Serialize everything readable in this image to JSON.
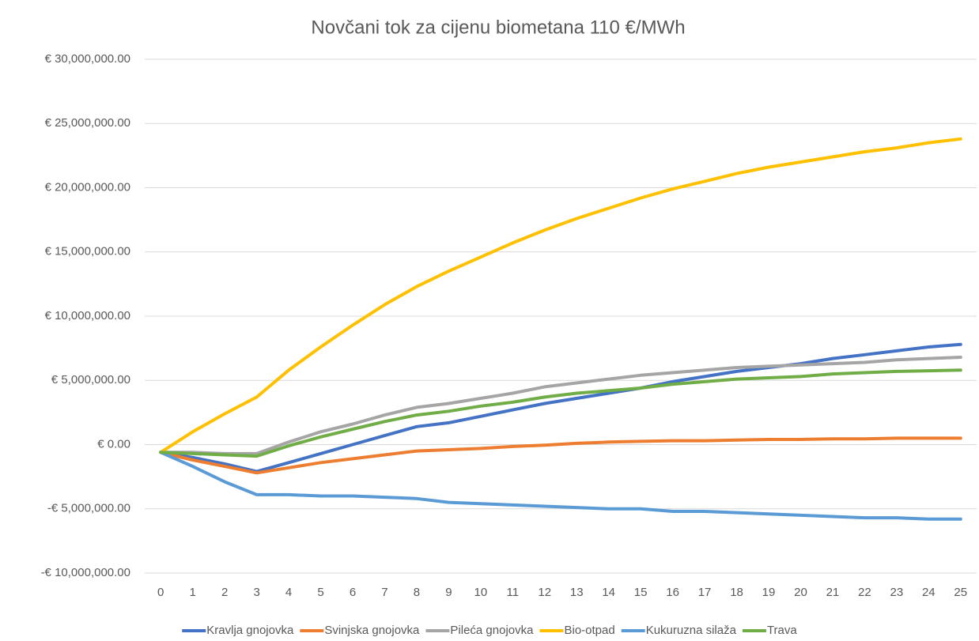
{
  "chart_data": {
    "type": "line",
    "title": "Novčani tok za cijenu biometana 110 €/MWh",
    "categories": [
      "0",
      "1",
      "2",
      "3",
      "4",
      "5",
      "6",
      "7",
      "8",
      "9",
      "10",
      "11",
      "12",
      "13",
      "14",
      "15",
      "16",
      "17",
      "18",
      "19",
      "20",
      "21",
      "22",
      "23",
      "24",
      "25"
    ],
    "ylim": [
      -10000000,
      30000000
    ],
    "yticks": [
      {
        "value": -10000000,
        "label": "-€ 10,000,000.00"
      },
      {
        "value": -5000000,
        "label": "-€ 5,000,000.00"
      },
      {
        "value": 0,
        "label": "€ 0.00"
      },
      {
        "value": 5000000,
        "label": "€ 5,000,000.00"
      },
      {
        "value": 10000000,
        "label": "€ 10,000,000.00"
      },
      {
        "value": 15000000,
        "label": "€ 15,000,000.00"
      },
      {
        "value": 20000000,
        "label": "€ 20,000,000.00"
      },
      {
        "value": 25000000,
        "label": "€ 25,000,000.00"
      },
      {
        "value": 30000000,
        "label": "€ 30,000,000.00"
      }
    ],
    "grid": true,
    "legend": "bottom",
    "series": [
      {
        "name": "Kravlja gnojovka",
        "color": "#4472C4",
        "values": [
          -600000,
          -1000000,
          -1500000,
          -2100000,
          -1400000,
          -700000,
          0,
          700000,
          1400000,
          1700000,
          2200000,
          2700000,
          3200000,
          3600000,
          4000000,
          4400000,
          4900000,
          5300000,
          5700000,
          6000000,
          6300000,
          6700000,
          7000000,
          7300000,
          7600000,
          7800000
        ]
      },
      {
        "name": "Svinjska gnojovka",
        "color": "#ED7D31",
        "values": [
          -600000,
          -1200000,
          -1700000,
          -2200000,
          -1800000,
          -1400000,
          -1100000,
          -800000,
          -500000,
          -400000,
          -300000,
          -150000,
          -50000,
          100000,
          200000,
          250000,
          300000,
          300000,
          350000,
          400000,
          400000,
          450000,
          450000,
          500000,
          500000,
          500000
        ]
      },
      {
        "name": "Pileća gnojovka",
        "color": "#A5A5A5",
        "values": [
          -600000,
          -600000,
          -700000,
          -700000,
          200000,
          1000000,
          1600000,
          2300000,
          2900000,
          3200000,
          3600000,
          4000000,
          4500000,
          4800000,
          5100000,
          5400000,
          5600000,
          5800000,
          6000000,
          6100000,
          6200000,
          6300000,
          6400000,
          6600000,
          6700000,
          6800000
        ]
      },
      {
        "name": "Bio-otpad",
        "color": "#FFC000",
        "values": [
          -600000,
          1000000,
          2400000,
          3700000,
          5800000,
          7600000,
          9300000,
          10900000,
          12300000,
          13500000,
          14600000,
          15700000,
          16700000,
          17600000,
          18400000,
          19200000,
          19900000,
          20500000,
          21100000,
          21600000,
          22000000,
          22400000,
          22800000,
          23100000,
          23500000,
          23800000
        ]
      },
      {
        "name": "Kukuruzna silaža",
        "color": "#5B9BD5",
        "values": [
          -600000,
          -1700000,
          -2900000,
          -3900000,
          -3900000,
          -4000000,
          -4000000,
          -4100000,
          -4200000,
          -4500000,
          -4600000,
          -4700000,
          -4800000,
          -4900000,
          -5000000,
          -5000000,
          -5200000,
          -5200000,
          -5300000,
          -5400000,
          -5500000,
          -5600000,
          -5700000,
          -5700000,
          -5800000,
          -5800000
        ]
      },
      {
        "name": "Trava",
        "color": "#70AD47",
        "values": [
          -600000,
          -700000,
          -800000,
          -900000,
          -100000,
          600000,
          1200000,
          1800000,
          2300000,
          2600000,
          3000000,
          3300000,
          3700000,
          4000000,
          4200000,
          4400000,
          4700000,
          4900000,
          5100000,
          5200000,
          5300000,
          5500000,
          5600000,
          5700000,
          5750000,
          5800000
        ]
      }
    ]
  }
}
